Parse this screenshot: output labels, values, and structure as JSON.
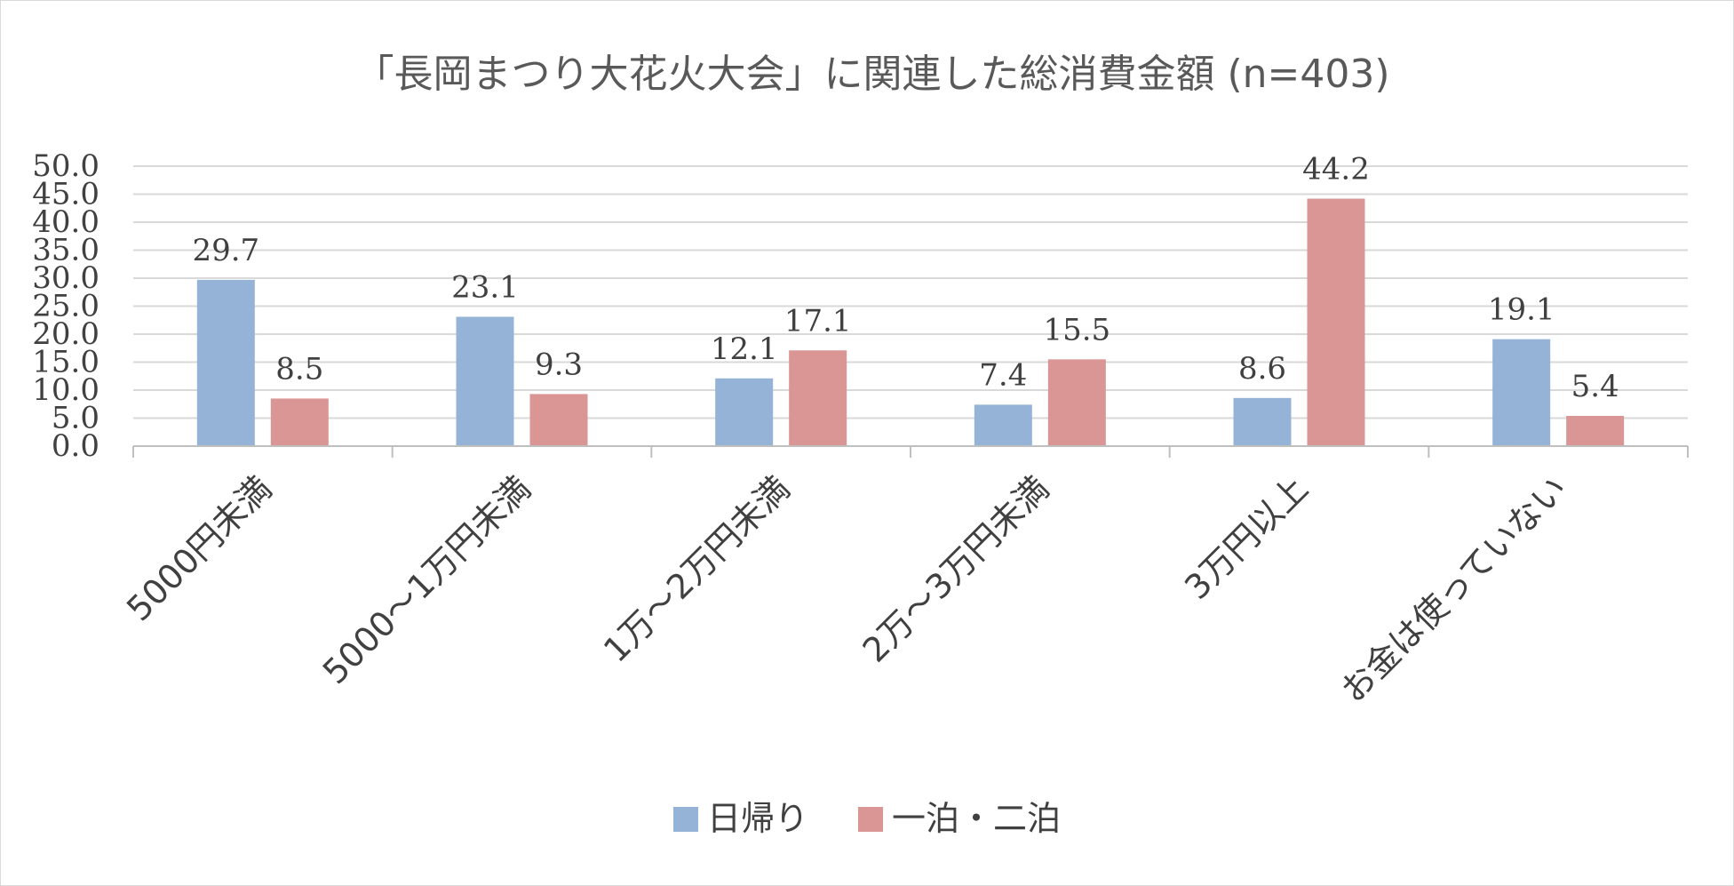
{
  "chart_data": {
    "type": "bar",
    "title": "「長岡まつり大花火大会」に関連した総消費金額 (n=403)",
    "categories": [
      "5000円未満",
      "5000～1万円未満",
      "1万～2万円未満",
      "2万～3万円未満",
      "3万円以上",
      "お金は使っていない"
    ],
    "series": [
      {
        "name": "日帰り",
        "color": "#95b3d7",
        "values": [
          29.7,
          23.1,
          12.1,
          7.4,
          8.6,
          19.1
        ]
      },
      {
        "name": "一泊・二泊",
        "color": "#d99694",
        "values": [
          8.5,
          9.3,
          17.1,
          15.5,
          44.2,
          5.4
        ]
      }
    ],
    "ylim": [
      0,
      50
    ],
    "yticks": [
      0,
      5,
      10,
      15,
      20,
      25,
      30,
      35,
      40,
      45,
      50
    ],
    "grid": true,
    "legend": "bottom",
    "xlabel": "",
    "ylabel": ""
  }
}
